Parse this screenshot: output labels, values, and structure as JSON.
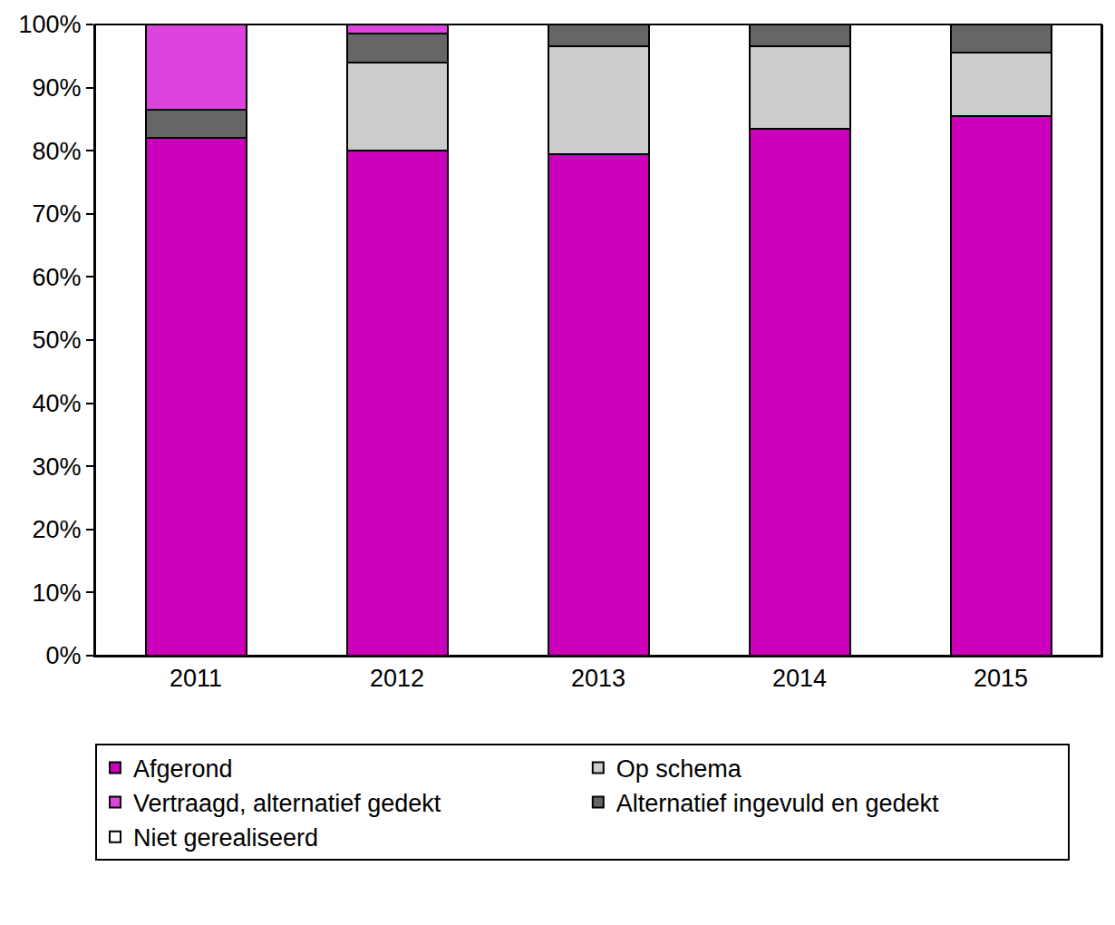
{
  "chart_data": {
    "type": "bar",
    "stacked": true,
    "categories": [
      "2011",
      "2012",
      "2013",
      "2014",
      "2015"
    ],
    "series": [
      {
        "name": "Afgerond",
        "color": "#cc00bb",
        "values": [
          82,
          80,
          79.5,
          83.5,
          85.5
        ]
      },
      {
        "name": "Op schema",
        "color": "#cccccc",
        "values": [
          0,
          14,
          17,
          13,
          10
        ]
      },
      {
        "name": "Alternatief ingevuld en gedekt",
        "color": "#666666",
        "values": [
          4.5,
          4.5,
          3.5,
          3.5,
          4.5
        ]
      },
      {
        "name": "Vertraagd, alternatief gedekt",
        "color": "#dd44dd",
        "values": [
          13.5,
          1.5,
          0,
          0,
          0
        ]
      },
      {
        "name": "Niet gerealiseerd",
        "color": "#ffffff",
        "values": [
          0,
          0,
          0,
          0,
          0
        ]
      }
    ],
    "ylim": [
      0,
      100
    ],
    "yticks": [
      {
        "value": 0,
        "label": "0%"
      },
      {
        "value": 10,
        "label": "10%"
      },
      {
        "value": 20,
        "label": "20%"
      },
      {
        "value": 30,
        "label": "30%"
      },
      {
        "value": 40,
        "label": "40%"
      },
      {
        "value": 50,
        "label": "50%"
      },
      {
        "value": 60,
        "label": "60%"
      },
      {
        "value": 70,
        "label": "70%"
      },
      {
        "value": 80,
        "label": "80%"
      },
      {
        "value": 90,
        "label": "90%"
      },
      {
        "value": 100,
        "label": "100%"
      }
    ],
    "grid": false,
    "legend": "bottom"
  }
}
